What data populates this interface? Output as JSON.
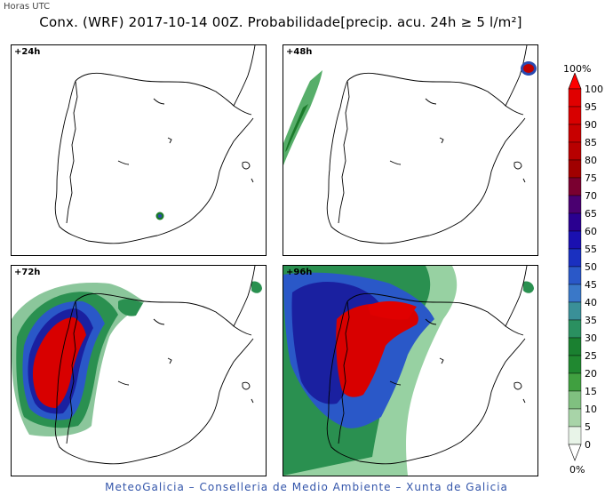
{
  "header": {
    "utc_label": "Horas UTC",
    "title": "Conx. (WRF) 2017-10-14 00Z. Probabilidade[precip. acu. 24h ≥ 5 l/m²]"
  },
  "panels": [
    {
      "label": "+24h"
    },
    {
      "label": "+48h"
    },
    {
      "label": "+72h"
    },
    {
      "label": "+96h"
    }
  ],
  "colorbar": {
    "top_label": "100%",
    "bottom_label": "0%",
    "ticks": [
      "100",
      "95",
      "90",
      "85",
      "80",
      "75",
      "70",
      "65",
      "60",
      "55",
      "50",
      "45",
      "40",
      "35",
      "30",
      "25",
      "20",
      "15",
      "10",
      "5",
      "0"
    ],
    "colors": [
      "#e00000",
      "#d80000",
      "#c80000",
      "#b80000",
      "#a00000",
      "#7a0030",
      "#4a0070",
      "#2a0090",
      "#1a10b0",
      "#1a30c0",
      "#2a58c8",
      "#3a78c8",
      "#3a9098",
      "#2a9060",
      "#1a8030",
      "#208830",
      "#40a040",
      "#80c080",
      "#a8d4a8",
      "#e8f4e8"
    ],
    "top_cap_color": "#ff0000",
    "bottom_cap_color": "#ffffff"
  },
  "footer": {
    "text": "MeteoGalicia – Conselleria de Medio Ambiente – Xunta de Galicia"
  }
}
